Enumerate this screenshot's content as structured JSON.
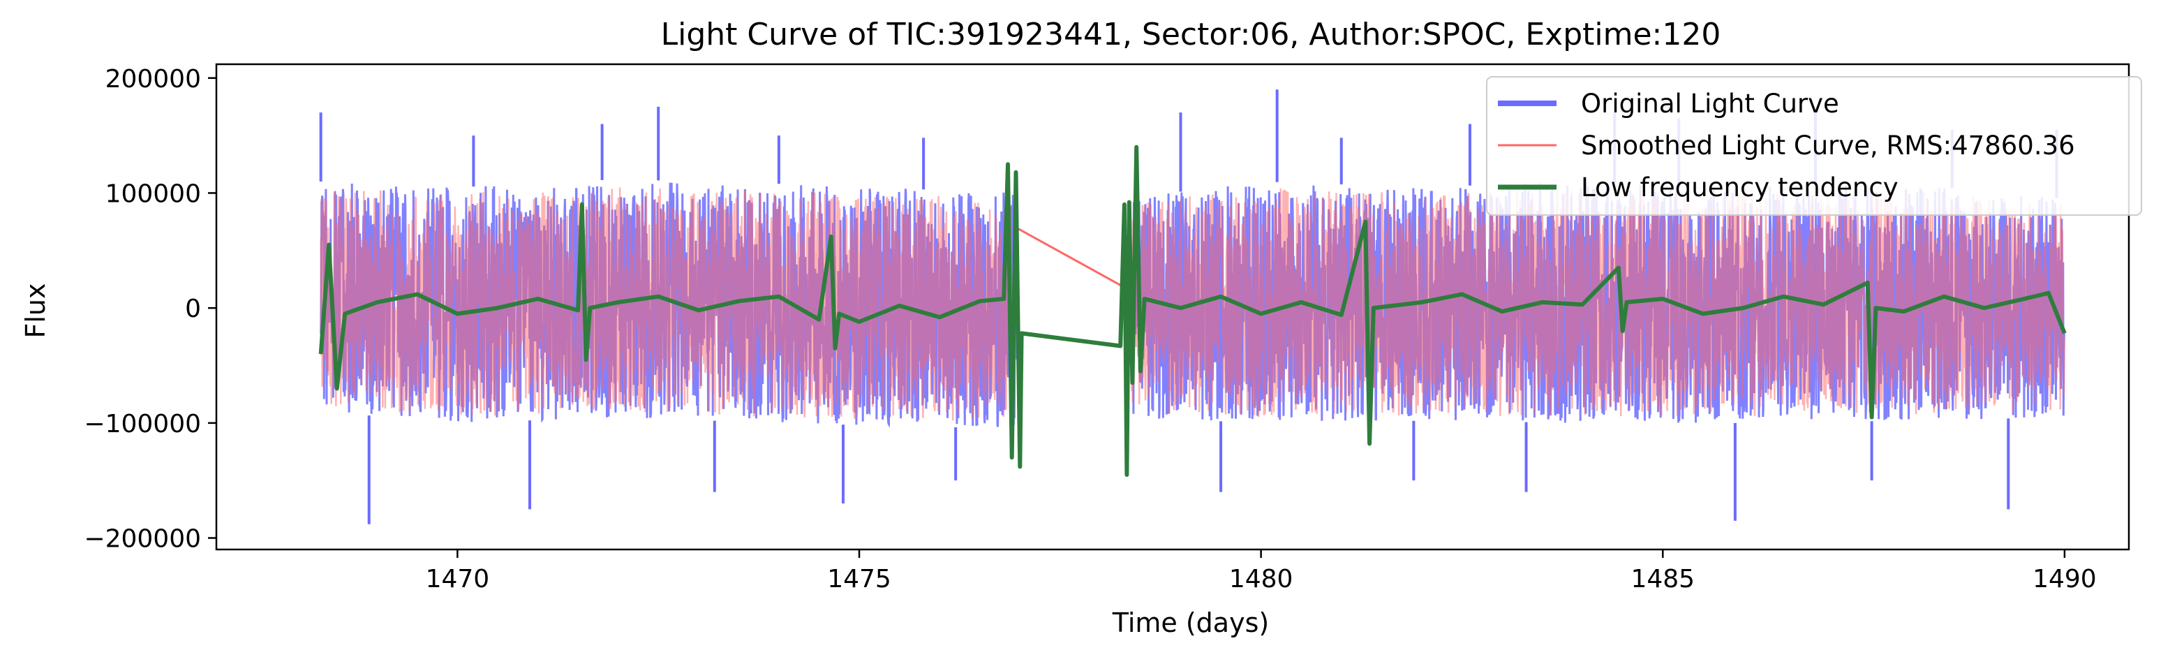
{
  "chart_data": {
    "type": "line",
    "title": "Light Curve of TIC:391923441, Sector:06, Author:SPOC, Exptime:120",
    "xlabel": "Time (days)",
    "ylabel": "Flux",
    "xlim": [
      1467.0,
      1490.8
    ],
    "ylim": [
      -210000,
      212000
    ],
    "xticks": [
      1470,
      1475,
      1480,
      1485,
      1490
    ],
    "xtick_labels": [
      "1470",
      "1475",
      "1480",
      "1485",
      "1490"
    ],
    "yticks": [
      -200000,
      -100000,
      0,
      100000,
      200000
    ],
    "ytick_labels": [
      "−200000",
      "−100000",
      "0",
      "100000",
      "200000"
    ],
    "grid": false,
    "legend_position": "top-right",
    "segments": [
      [
        1468.3,
        1476.95
      ],
      [
        1478.3,
        1490.0
      ]
    ],
    "series": [
      {
        "name": "Original Light Curve",
        "color": "#6b6bff",
        "envelope_upper": [
          [
            1468.3,
            110000
          ],
          [
            1470.0,
            105000
          ],
          [
            1472.0,
            112000
          ],
          [
            1474.0,
            108000
          ],
          [
            1476.95,
            100000
          ],
          [
            1478.3,
            95000
          ],
          [
            1480.0,
            110000
          ],
          [
            1482.0,
            105000
          ],
          [
            1484.0,
            110000
          ],
          [
            1486.0,
            105000
          ],
          [
            1488.0,
            108000
          ],
          [
            1490.0,
            95000
          ]
        ],
        "envelope_lower": [
          [
            1468.3,
            -90000
          ],
          [
            1470.0,
            -100000
          ],
          [
            1472.0,
            -95000
          ],
          [
            1474.0,
            -100000
          ],
          [
            1476.95,
            -105000
          ],
          [
            1478.3,
            -95000
          ],
          [
            1480.0,
            -100000
          ],
          [
            1482.0,
            -98000
          ],
          [
            1484.0,
            -100000
          ],
          [
            1486.0,
            -100000
          ],
          [
            1488.0,
            -98000
          ],
          [
            1490.0,
            -95000
          ]
        ],
        "spikes": [
          [
            1468.3,
            170000
          ],
          [
            1468.9,
            -188000
          ],
          [
            1470.2,
            150000
          ],
          [
            1470.9,
            -175000
          ],
          [
            1471.8,
            160000
          ],
          [
            1472.5,
            175000
          ],
          [
            1473.2,
            -160000
          ],
          [
            1474.0,
            150000
          ],
          [
            1474.8,
            -170000
          ],
          [
            1475.8,
            148000
          ],
          [
            1476.2,
            -150000
          ],
          [
            1479.0,
            170000
          ],
          [
            1479.5,
            -160000
          ],
          [
            1480.2,
            190000
          ],
          [
            1481.0,
            148000
          ],
          [
            1481.9,
            -150000
          ],
          [
            1482.6,
            160000
          ],
          [
            1483.3,
            -160000
          ],
          [
            1484.4,
            170000
          ],
          [
            1485.2,
            165000
          ],
          [
            1485.9,
            -185000
          ],
          [
            1486.9,
            170000
          ],
          [
            1487.6,
            -150000
          ],
          [
            1488.6,
            155000
          ],
          [
            1489.3,
            -175000
          ],
          [
            1489.9,
            155000
          ]
        ]
      },
      {
        "name": "Smoothed Light Curve, RMS:47860.36",
        "color": "#ff6666",
        "gap_line": [
          [
            1476.95,
            70000
          ],
          [
            1478.3,
            18000
          ]
        ]
      },
      {
        "name": "Low frequency tendency",
        "color": "#2e7d3c",
        "points": [
          [
            1468.3,
            -40000
          ],
          [
            1468.4,
            55000
          ],
          [
            1468.5,
            -70000
          ],
          [
            1468.6,
            -5000
          ],
          [
            1469.0,
            5000
          ],
          [
            1469.5,
            12000
          ],
          [
            1470.0,
            -5000
          ],
          [
            1470.5,
            0
          ],
          [
            1471.0,
            8000
          ],
          [
            1471.5,
            -2000
          ],
          [
            1471.55,
            90000
          ],
          [
            1471.6,
            -45000
          ],
          [
            1471.65,
            0
          ],
          [
            1472.0,
            5000
          ],
          [
            1472.5,
            10000
          ],
          [
            1473.0,
            -2000
          ],
          [
            1473.5,
            6000
          ],
          [
            1474.0,
            10000
          ],
          [
            1474.5,
            -10000
          ],
          [
            1474.65,
            62000
          ],
          [
            1474.7,
            -35000
          ],
          [
            1474.75,
            -5000
          ],
          [
            1475.0,
            -12000
          ],
          [
            1475.5,
            2000
          ],
          [
            1476.0,
            -8000
          ],
          [
            1476.5,
            6000
          ],
          [
            1476.8,
            8000
          ],
          [
            1476.85,
            125000
          ],
          [
            1476.9,
            -130000
          ],
          [
            1476.95,
            118000
          ],
          [
            1477.0,
            -138000
          ],
          [
            1477.02,
            -22000
          ],
          [
            1478.25,
            -33000
          ],
          [
            1478.3,
            90000
          ],
          [
            1478.33,
            -145000
          ],
          [
            1478.36,
            92000
          ],
          [
            1478.4,
            -65000
          ],
          [
            1478.45,
            140000
          ],
          [
            1478.5,
            -55000
          ],
          [
            1478.55,
            8000
          ],
          [
            1479.0,
            0
          ],
          [
            1479.5,
            10000
          ],
          [
            1480.0,
            -5000
          ],
          [
            1480.5,
            5000
          ],
          [
            1481.0,
            -6000
          ],
          [
            1481.3,
            75000
          ],
          [
            1481.35,
            -118000
          ],
          [
            1481.4,
            0
          ],
          [
            1482.0,
            5000
          ],
          [
            1482.5,
            12000
          ],
          [
            1483.0,
            -3000
          ],
          [
            1483.5,
            5000
          ],
          [
            1484.0,
            3000
          ],
          [
            1484.45,
            35000
          ],
          [
            1484.5,
            -20000
          ],
          [
            1484.55,
            5000
          ],
          [
            1485.0,
            8000
          ],
          [
            1485.5,
            -5000
          ],
          [
            1486.0,
            0
          ],
          [
            1486.5,
            10000
          ],
          [
            1487.0,
            3000
          ],
          [
            1487.55,
            22000
          ],
          [
            1487.6,
            -95000
          ],
          [
            1487.65,
            0
          ],
          [
            1488.0,
            -3000
          ],
          [
            1488.5,
            10000
          ],
          [
            1489.0,
            0
          ],
          [
            1489.5,
            8000
          ],
          [
            1489.8,
            13000
          ],
          [
            1490.0,
            -22000
          ]
        ]
      }
    ]
  }
}
